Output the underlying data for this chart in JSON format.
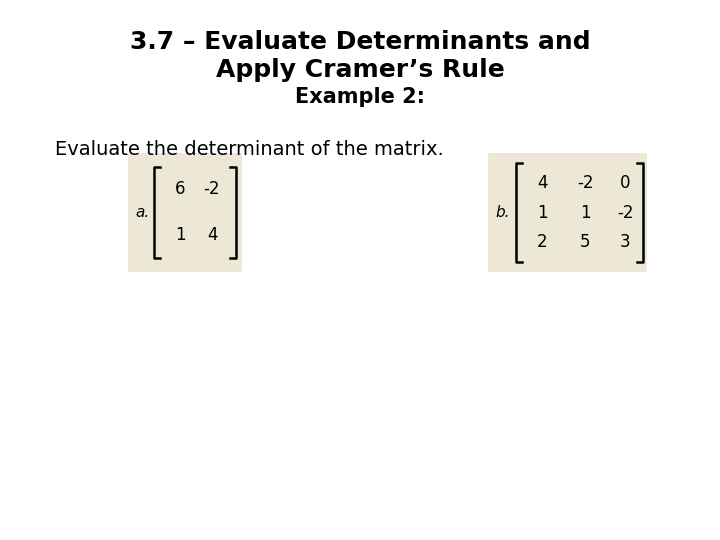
{
  "title_line1": "3.7 – Evaluate Determinants and",
  "title_line2": "Apply Cramer’s Rule",
  "subtitle": "Example 2:",
  "body_text": "Evaluate the determinant of the matrix.",
  "label_a": "a.",
  "label_b": "b.",
  "matrix_a": [
    [
      "6",
      "-2"
    ],
    [
      "1",
      "4"
    ]
  ],
  "matrix_b": [
    [
      "4",
      "-2",
      "0"
    ],
    [
      "1",
      "1",
      "-2"
    ],
    [
      "2",
      "5",
      "3"
    ]
  ],
  "box_color": "#ede8d5",
  "bg_color": "#ffffff",
  "title_fontsize": 18,
  "subtitle_fontsize": 15,
  "body_fontsize": 14,
  "matrix_fontsize": 12,
  "label_fontsize": 11
}
